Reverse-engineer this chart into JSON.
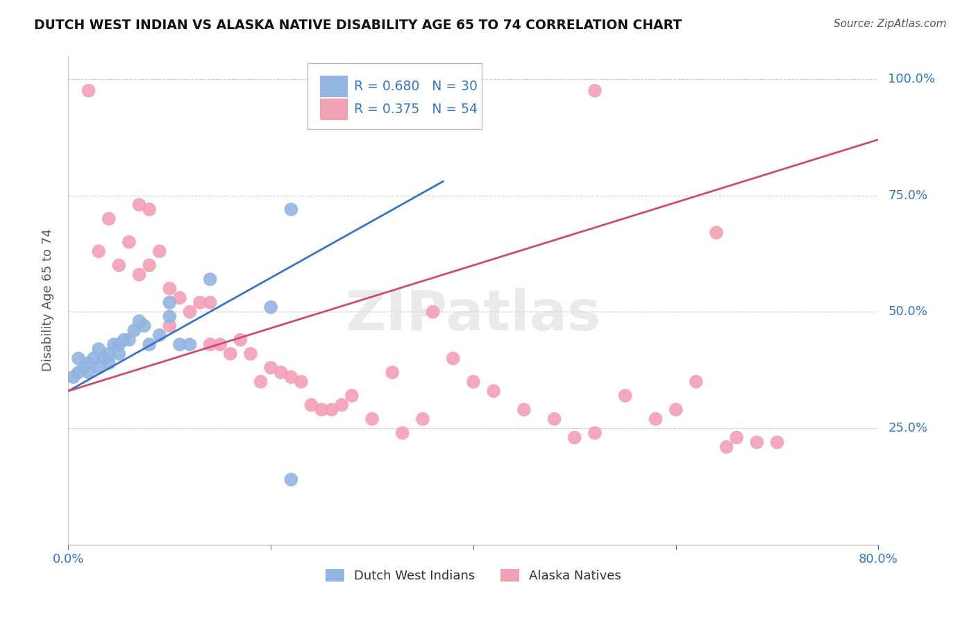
{
  "title": "DUTCH WEST INDIAN VS ALASKA NATIVE DISABILITY AGE 65 TO 74 CORRELATION CHART",
  "source": "Source: ZipAtlas.com",
  "ylabel": "Disability Age 65 to 74",
  "xlim": [
    0.0,
    0.8
  ],
  "ylim": [
    0.0,
    1.05
  ],
  "blue_color": "#92B4E0",
  "pink_color": "#F2A0B4",
  "blue_line_color": "#3575C8",
  "pink_line_color": "#D04878",
  "legend_R_blue": "R = 0.680",
  "legend_N_blue": "N = 30",
  "legend_R_pink": "R = 0.375",
  "legend_N_pink": "N = 54",
  "legend_label_blue": "Dutch West Indians",
  "legend_label_pink": "Alaska Natives",
  "watermark": "ZIPatlas",
  "blue_scatter_x": [
    0.005,
    0.01,
    0.01,
    0.015,
    0.02,
    0.02,
    0.025,
    0.03,
    0.03,
    0.035,
    0.04,
    0.04,
    0.045,
    0.05,
    0.05,
    0.055,
    0.06,
    0.065,
    0.07,
    0.075,
    0.08,
    0.09,
    0.1,
    0.1,
    0.11,
    0.12,
    0.14,
    0.2,
    0.22,
    0.22
  ],
  "blue_scatter_y": [
    0.36,
    0.37,
    0.4,
    0.38,
    0.37,
    0.39,
    0.4,
    0.38,
    0.42,
    0.4,
    0.39,
    0.41,
    0.43,
    0.41,
    0.43,
    0.44,
    0.44,
    0.46,
    0.48,
    0.47,
    0.43,
    0.45,
    0.49,
    0.52,
    0.43,
    0.43,
    0.57,
    0.51,
    0.72,
    0.14
  ],
  "pink_scatter_x": [
    0.02,
    0.28,
    0.52,
    0.03,
    0.04,
    0.05,
    0.06,
    0.07,
    0.07,
    0.08,
    0.08,
    0.09,
    0.1,
    0.1,
    0.11,
    0.12,
    0.13,
    0.14,
    0.14,
    0.15,
    0.16,
    0.17,
    0.18,
    0.19,
    0.2,
    0.21,
    0.22,
    0.23,
    0.24,
    0.25,
    0.26,
    0.27,
    0.28,
    0.3,
    0.32,
    0.33,
    0.35,
    0.36,
    0.38,
    0.4,
    0.42,
    0.45,
    0.48,
    0.5,
    0.52,
    0.55,
    0.58,
    0.6,
    0.62,
    0.64,
    0.66,
    0.68,
    0.7,
    0.65
  ],
  "pink_scatter_y": [
    0.975,
    0.975,
    0.975,
    0.63,
    0.7,
    0.6,
    0.65,
    0.58,
    0.73,
    0.6,
    0.72,
    0.63,
    0.47,
    0.55,
    0.53,
    0.5,
    0.52,
    0.52,
    0.43,
    0.43,
    0.41,
    0.44,
    0.41,
    0.35,
    0.38,
    0.37,
    0.36,
    0.35,
    0.3,
    0.29,
    0.29,
    0.3,
    0.32,
    0.27,
    0.37,
    0.24,
    0.27,
    0.5,
    0.4,
    0.35,
    0.33,
    0.29,
    0.27,
    0.23,
    0.24,
    0.32,
    0.27,
    0.29,
    0.35,
    0.67,
    0.23,
    0.22,
    0.22,
    0.21
  ],
  "blue_line_x": [
    0.0,
    0.37
  ],
  "blue_line_y": [
    0.33,
    0.78
  ],
  "pink_line_x": [
    0.0,
    0.8
  ],
  "pink_line_y": [
    0.33,
    0.87
  ]
}
